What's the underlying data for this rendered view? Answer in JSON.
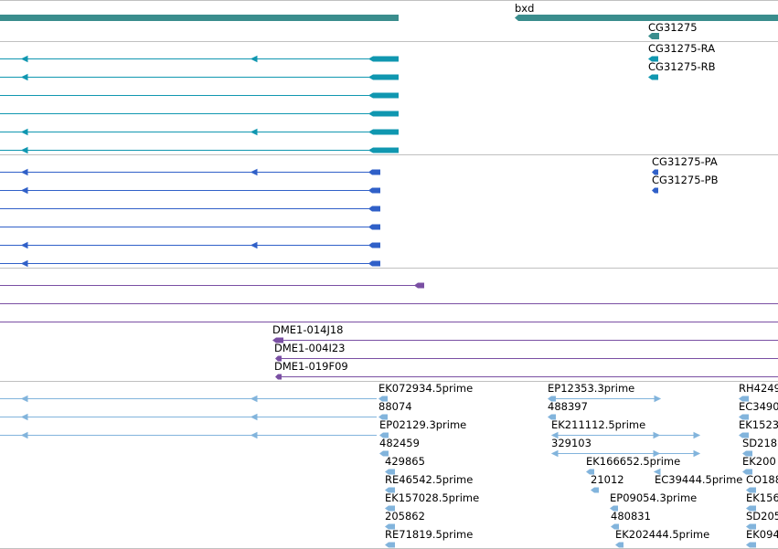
{
  "colors": {
    "top": "#3a8d8d",
    "rna": "#1097b0",
    "protein": "#3060c8",
    "clone": "#7a4fa3",
    "est": "#82b4dc",
    "divider": "#c0c0c0"
  },
  "track_top": {
    "label": "bxd",
    "gene_label": "CG31275"
  },
  "track_rna": {
    "labels": [
      "CG31275-RA",
      "CG31275-RB"
    ]
  },
  "track_protein": {
    "labels": [
      "CG31275-PA",
      "CG31275-PB"
    ]
  },
  "track_clone": {
    "labels": [
      "DME1-014J18",
      "DME1-004I23",
      "DME1-019F09"
    ]
  },
  "track_est": {
    "col1": [
      "EK072934.5prime",
      "88074",
      "EP02129.3prime",
      "482459",
      "429865",
      "RE46542.5prime",
      "EK157028.5prime",
      "205862",
      "RE71819.5prime"
    ],
    "col2": [
      "EP12353.3prime",
      "488397",
      "EK211112.5prime",
      "329103",
      "EK166652.5prime",
      "21012",
      "EC39444.5prime",
      "EP09054.3prime",
      "480831",
      "EK202444.5prime"
    ],
    "col3": [
      "RH4249",
      "EC3490",
      "EK1523",
      "SD218",
      "EK200",
      "CO188",
      "EK156",
      "SD205",
      "EK094"
    ]
  }
}
